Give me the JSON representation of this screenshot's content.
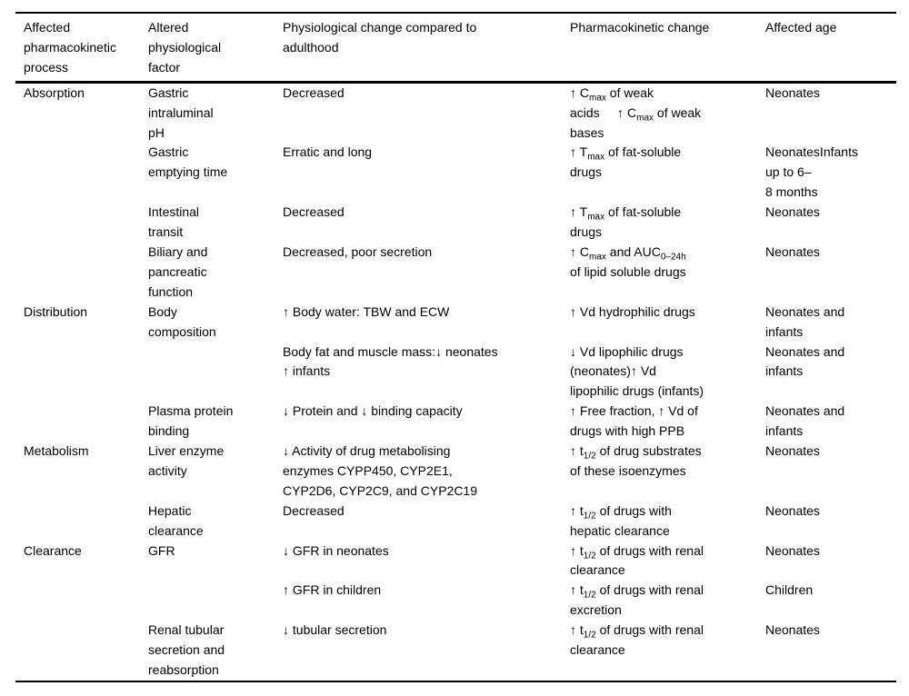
{
  "colors": {
    "background": "#ffffff",
    "text": "#000000",
    "rules": "#000000"
  },
  "table": {
    "headers": [
      {
        "id": "process",
        "label": "Affected\npharmacokinetic\nprocess"
      },
      {
        "id": "factor",
        "label": "Altered\nphysiological\nfactor"
      },
      {
        "id": "physiological_change",
        "label": "Physiological change compared to\nadulthood"
      },
      {
        "id": "pk_change",
        "label": "Pharmacokinetic change"
      },
      {
        "id": "affected_age",
        "label": "Affected age"
      }
    ],
    "rows": [
      {
        "process": "Absorption",
        "factor": "Gastric\nintraluminal\npH",
        "physiological_change": "Decreased",
        "pk_change": "↑ C~max~ of weak\nacids     ↑ C~max~ of weak\nbases",
        "affected_age": "Neonates"
      },
      {
        "process": "",
        "factor": "Gastric\nemptying time",
        "physiological_change": "Erratic and long",
        "pk_change": "↑ T~max~ of fat-soluble\ndrugs",
        "affected_age": "NeonatesInfants\nup to 6–\n8 months"
      },
      {
        "process": "",
        "factor": "Intestinal\ntransit",
        "physiological_change": "Decreased",
        "pk_change": "↑ T~max~ of fat-soluble\ndrugs",
        "affected_age": "Neonates"
      },
      {
        "process": "",
        "factor": "Biliary and\npancreatic\nfunction",
        "physiological_change": "Decreased, poor secretion",
        "pk_change": "↑ C~max~ and AUC~0–24h~\nof lipid soluble drugs",
        "affected_age": "Neonates"
      },
      {
        "process": "Distribution",
        "factor": "Body\ncomposition",
        "physiological_change": "↑ Body water: TBW and ECW",
        "pk_change": "↑ Vd hydrophilic drugs",
        "affected_age": "Neonates and\ninfants"
      },
      {
        "process": "",
        "factor": "",
        "physiological_change": "Body fat and muscle mass:↓ neonates\n↑ infants",
        "pk_change": "↓ Vd lipophilic drugs\n(neonates)↑ Vd\nlipophilic drugs (infants)",
        "affected_age": "Neonates and\ninfants"
      },
      {
        "process": "",
        "factor": "Plasma protein\nbinding",
        "physiological_change": "↓ Protein and ↓ binding capacity",
        "pk_change": "↑ Free fraction, ↑ Vd of\ndrugs with high PPB",
        "affected_age": "Neonates and\ninfants"
      },
      {
        "process": "Metabolism",
        "factor": "Liver enzyme\nactivity",
        "physiological_change": "↓ Activity of drug metabolising\nenzymes CYPP450, CYP2E1,\nCYP2D6, CYP2C9, and CYP2C19",
        "pk_change": "↑ t~1/2~ of drug substrates\nof these isoenzymes",
        "affected_age": "Neonates"
      },
      {
        "process": "",
        "factor": "Hepatic\nclearance",
        "physiological_change": "Decreased",
        "pk_change": "↑ t~1/2~ of drugs with\nhepatic clearance",
        "affected_age": "Neonates"
      },
      {
        "process": "Clearance",
        "factor": "GFR",
        "physiological_change": "↓ GFR in neonates",
        "pk_change": "↑ t~1/2~ of drugs with renal\nclearance",
        "affected_age": "Neonates"
      },
      {
        "process": "",
        "factor": "",
        "physiological_change": "↑ GFR in children",
        "pk_change": "↑ t~1/2~ of drugs with renal\nexcretion",
        "affected_age": "Children"
      },
      {
        "process": "",
        "factor": "Renal tubular\nsecretion and\nreabsorption",
        "physiological_change": "↓ tubular secretion",
        "pk_change": "↑ t~1/2~ of drugs with renal\nclearance",
        "affected_age": "Neonates"
      }
    ]
  }
}
